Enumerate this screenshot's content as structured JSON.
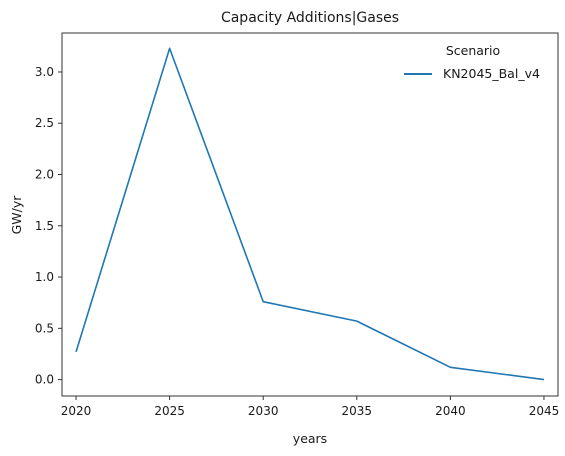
{
  "chart_data": {
    "type": "line",
    "title": "Capacity Additions|Gases",
    "xlabel": "years",
    "ylabel": "GW/yr",
    "x": [
      2020,
      2025,
      2030,
      2035,
      2040,
      2045
    ],
    "xticks": [
      "2020",
      "2025",
      "2030",
      "2035",
      "2040",
      "2045"
    ],
    "yticks": [
      "0.0",
      "0.5",
      "1.0",
      "1.5",
      "2.0",
      "2.5",
      "3.0"
    ],
    "xlim": [
      2019.25,
      2045.75
    ],
    "ylim": [
      -0.16,
      3.38
    ],
    "grid": false,
    "legend": {
      "title": "Scenario",
      "position": "top-right"
    },
    "series": [
      {
        "name": "KN2045_Bal_v4",
        "color": "#1f77b4",
        "values": [
          0.27,
          3.23,
          0.76,
          0.57,
          0.12,
          0.0
        ]
      }
    ]
  }
}
